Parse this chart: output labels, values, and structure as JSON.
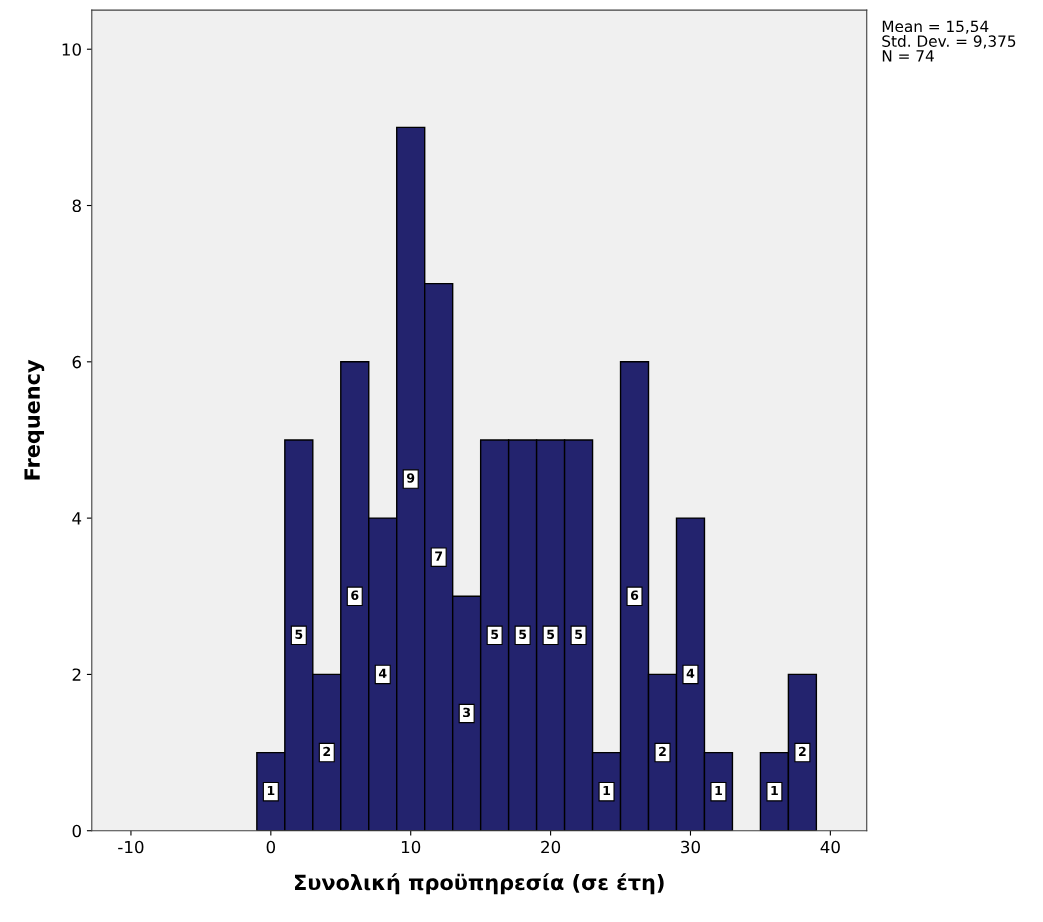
{
  "chart_data": {
    "type": "histogram",
    "xlabel": "Συνολική προϋπηρεσία (σε έτη)",
    "ylabel": "Frequency",
    "bins": [
      -1,
      1,
      3,
      5,
      7,
      9,
      11,
      13,
      15,
      17,
      19,
      21,
      23,
      25,
      27,
      29,
      31,
      33,
      35,
      37,
      39
    ],
    "values": [
      1,
      5,
      2,
      6,
      4,
      9,
      7,
      3,
      5,
      5,
      5,
      5,
      1,
      6,
      2,
      4,
      1,
      0,
      1,
      2
    ],
    "value_labels": [
      "1",
      "5",
      "2",
      "6",
      "4",
      "9",
      "7",
      "3",
      "5",
      "5",
      "5",
      "5",
      "1",
      "6",
      "2",
      "4",
      "1",
      null,
      "1",
      "2"
    ],
    "color": "#23236e",
    "xlim": [
      -12.8,
      42.6
    ],
    "xticks": [
      -10,
      0,
      10,
      20,
      30,
      40
    ],
    "ylim": [
      0,
      10.5
    ],
    "yticks": [
      0,
      2,
      4,
      6,
      8,
      10
    ],
    "grid": false,
    "annotations": [
      "Mean = 15,54",
      "Std. Dev. = 9,375",
      "N = 74"
    ]
  }
}
